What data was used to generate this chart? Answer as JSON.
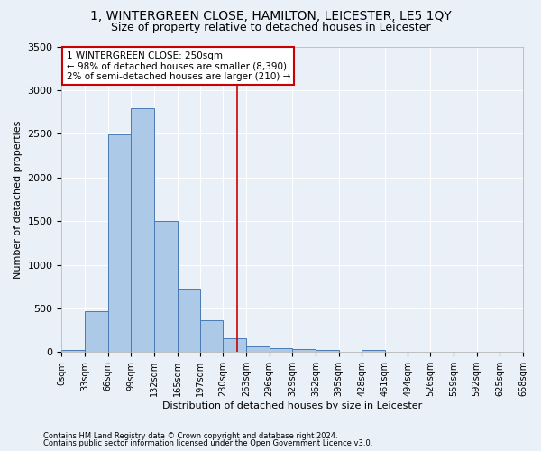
{
  "title": "1, WINTERGREEN CLOSE, HAMILTON, LEICESTER, LE5 1QY",
  "subtitle": "Size of property relative to detached houses in Leicester",
  "xlabel": "Distribution of detached houses by size in Leicester",
  "ylabel": "Number of detached properties",
  "footnote1": "Contains HM Land Registry data © Crown copyright and database right 2024.",
  "footnote2": "Contains public sector information licensed under the Open Government Licence v3.0.",
  "bin_edges": [
    0,
    33,
    66,
    99,
    132,
    165,
    197,
    230,
    263,
    296,
    329,
    362,
    395,
    428,
    461,
    494,
    526,
    559,
    592,
    625,
    658
  ],
  "bar_values": [
    20,
    470,
    2490,
    2790,
    1500,
    730,
    370,
    155,
    70,
    50,
    30,
    25,
    5,
    25,
    5,
    2,
    0,
    0,
    0,
    0
  ],
  "bar_color": "#adc9e8",
  "bar_edge_color": "#4a7ab5",
  "property_size": 250,
  "vline_color": "#cc0000",
  "annotation_text": "1 WINTERGREEN CLOSE: 250sqm\n← 98% of detached houses are smaller (8,390)\n2% of semi-detached houses are larger (210) →",
  "annotation_box_color": "#ffffff",
  "annotation_box_edge_color": "#cc0000",
  "ylim": [
    0,
    3500
  ],
  "background_color": "#eaf0f8",
  "plot_background_color": "#eaf0f8",
  "grid_color": "#ffffff",
  "title_fontsize": 10,
  "subtitle_fontsize": 9,
  "axis_label_fontsize": 8,
  "tick_label_fontsize": 7,
  "annotation_fontsize": 7.5,
  "footnote_fontsize": 6
}
